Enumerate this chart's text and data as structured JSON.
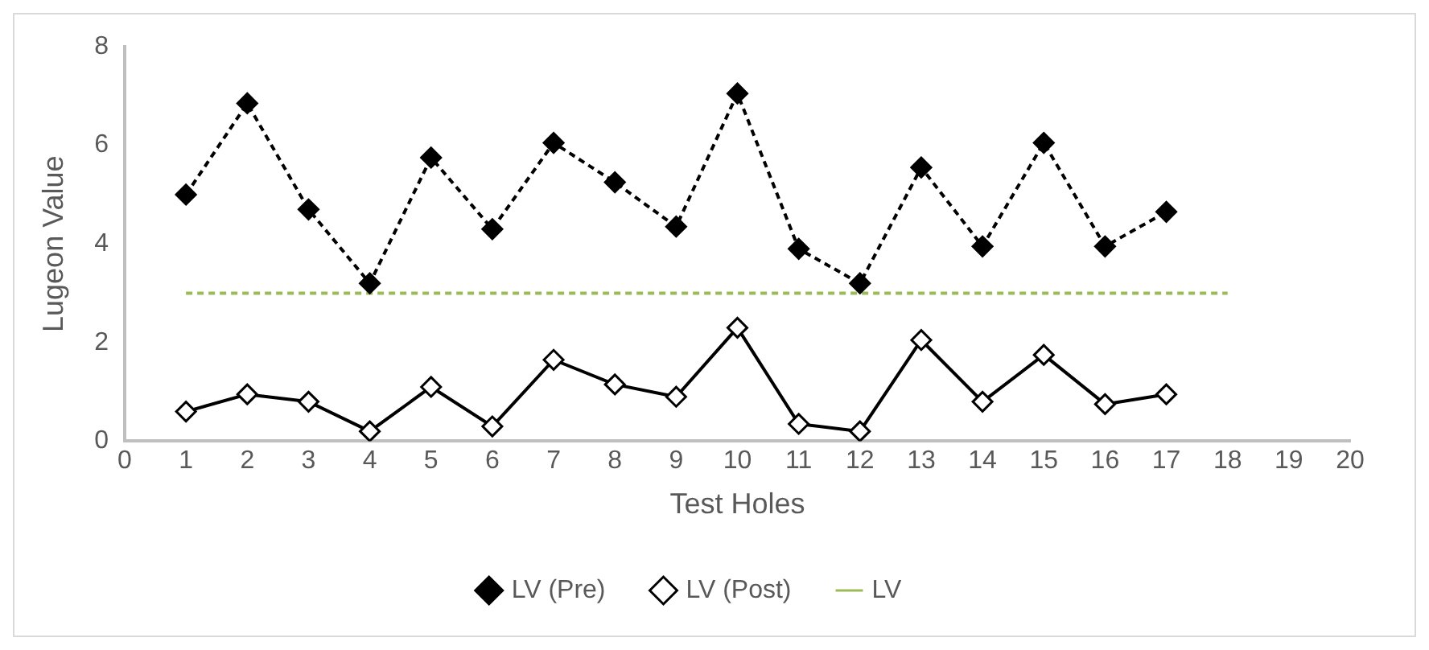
{
  "chart_data": {
    "type": "line",
    "xlabel": "Test Holes",
    "ylabel": "Lugeon Value",
    "xlim": [
      0,
      20
    ],
    "xticks": [
      0,
      1,
      2,
      3,
      4,
      5,
      6,
      7,
      8,
      9,
      10,
      11,
      12,
      13,
      14,
      15,
      16,
      17,
      18,
      19,
      20
    ],
    "ylim": [
      0,
      8
    ],
    "yticks": [
      0,
      2,
      4,
      6,
      8
    ],
    "grid": false,
    "legend": "bottom",
    "series": [
      {
        "name": "LV (Pre)",
        "color": "#000000",
        "marker": "diamond",
        "line_style": "dashed",
        "x": [
          1,
          2,
          3,
          4,
          5,
          6,
          7,
          8,
          9,
          10,
          11,
          12,
          13,
          14,
          15,
          16,
          17
        ],
        "values": [
          5.0,
          6.85,
          4.7,
          3.2,
          5.75,
          4.3,
          6.05,
          5.25,
          4.35,
          7.05,
          3.9,
          3.2,
          5.55,
          3.95,
          6.05,
          3.95,
          4.65
        ]
      },
      {
        "name": "LV (Post)",
        "color": "#000000",
        "marker": "diamond_open",
        "line_style": "solid",
        "x": [
          1,
          2,
          3,
          4,
          5,
          6,
          7,
          8,
          9,
          10,
          11,
          12,
          13,
          14,
          15,
          16,
          17
        ],
        "values": [
          0.6,
          0.95,
          0.8,
          0.2,
          1.1,
          0.3,
          1.65,
          1.15,
          0.9,
          2.3,
          0.35,
          0.2,
          2.05,
          0.8,
          1.75,
          0.75,
          0.95
        ]
      },
      {
        "name": "LV",
        "color": "#9bbb59",
        "marker": "none",
        "line_style": "dashed",
        "x": [
          1,
          2,
          3,
          4,
          5,
          6,
          7,
          8,
          9,
          10,
          11,
          12,
          13,
          14,
          15,
          16,
          17,
          18
        ],
        "values": [
          3,
          3,
          3,
          3,
          3,
          3,
          3,
          3,
          3,
          3,
          3,
          3,
          3,
          3,
          3,
          3,
          3,
          3
        ]
      }
    ]
  }
}
